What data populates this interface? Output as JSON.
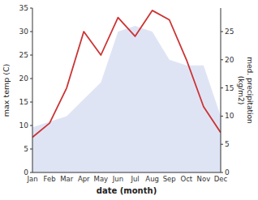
{
  "chart_data": {
    "type": "line",
    "x_label": "date (month)",
    "y_label": "max temp (C)",
    "y2_label": "med. precipitation\n(kg/m2)",
    "categories": [
      "Jan",
      "Feb",
      "Mar",
      "Apr",
      "May",
      "Jun",
      "Jul",
      "Aug",
      "Sep",
      "Oct",
      "Nov",
      "Dec"
    ],
    "series": [
      {
        "type": "area",
        "axis": "y2",
        "color": "#b8c4e8",
        "values": [
          8.0,
          9.0,
          10.0,
          13.0,
          16.0,
          25.0,
          26.0,
          25.0,
          20.0,
          19.0,
          19.0,
          10.0
        ]
      },
      {
        "type": "line",
        "color": "#cc3333",
        "values": [
          7.5,
          10.5,
          18.0,
          30.0,
          25.0,
          33.0,
          29.0,
          34.5,
          32.5,
          24.0,
          14.0,
          8.5
        ]
      }
    ],
    "ylim": [
      0,
      35
    ],
    "yticks": [
      0,
      5,
      10,
      15,
      20,
      25,
      30,
      35
    ],
    "y2lim": [
      0,
      29.167
    ],
    "y2ticks": [
      0,
      5,
      10,
      15,
      20,
      25
    ],
    "grid": false
  }
}
